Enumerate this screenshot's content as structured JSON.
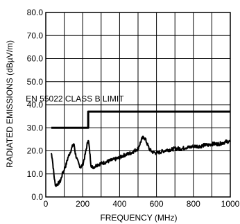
{
  "chart_data": {
    "type": "line",
    "title": "",
    "xlabel": "FREQUENCY (MHz)",
    "ylabel": "RADIATED EMISSIONS (dBµV/m)",
    "xlim": [
      0,
      1000
    ],
    "ylim": [
      0,
      80
    ],
    "grid": true,
    "x_tick_labels": [
      "0",
      "200",
      "400",
      "600",
      "800",
      "1000"
    ],
    "y_tick_labels": [
      "0.0",
      "10.0",
      "20.0",
      "30.0",
      "40.0",
      "50.0",
      "60.0",
      "70.0",
      "80.0"
    ],
    "x_ticks": [
      0,
      200,
      400,
      600,
      800,
      1000
    ],
    "y_ticks": [
      0,
      10,
      20,
      30,
      40,
      50,
      60,
      70,
      80
    ],
    "annotations": [
      {
        "text": "EN 55022 CLASS B LIMIT",
        "x": 230,
        "y": 42.5
      }
    ],
    "series": [
      {
        "style": "thick",
        "points": [
          [
            30,
            30
          ],
          [
            230,
            30
          ],
          [
            230,
            37
          ],
          [
            1000,
            37
          ]
        ]
      },
      {
        "style": "noisy",
        "points": [
          [
            30,
            19
          ],
          [
            35,
            17
          ],
          [
            40,
            13
          ],
          [
            45,
            9
          ],
          [
            50,
            6
          ],
          [
            55,
            5
          ],
          [
            60,
            5.5
          ],
          [
            70,
            6
          ],
          [
            80,
            7
          ],
          [
            90,
            10
          ],
          [
            100,
            12
          ],
          [
            110,
            14
          ],
          [
            120,
            17
          ],
          [
            130,
            19
          ],
          [
            140,
            21
          ],
          [
            150,
            23
          ],
          [
            155,
            22
          ],
          [
            160,
            19
          ],
          [
            170,
            16
          ],
          [
            180,
            14
          ],
          [
            190,
            13
          ],
          [
            200,
            14
          ],
          [
            210,
            17
          ],
          [
            220,
            21
          ],
          [
            225,
            23
          ],
          [
            230,
            25
          ],
          [
            235,
            22
          ],
          [
            240,
            18
          ],
          [
            245,
            14
          ],
          [
            250,
            13
          ],
          [
            260,
            13
          ],
          [
            280,
            14
          ],
          [
            300,
            14.5
          ],
          [
            320,
            15
          ],
          [
            340,
            15.5
          ],
          [
            360,
            16
          ],
          [
            380,
            16.5
          ],
          [
            400,
            17
          ],
          [
            420,
            18
          ],
          [
            440,
            18.5
          ],
          [
            460,
            19
          ],
          [
            480,
            20
          ],
          [
            500,
            21
          ],
          [
            510,
            23
          ],
          [
            520,
            25
          ],
          [
            530,
            26
          ],
          [
            540,
            25
          ],
          [
            550,
            23
          ],
          [
            560,
            21
          ],
          [
            570,
            20
          ],
          [
            580,
            19.5
          ],
          [
            600,
            19
          ],
          [
            620,
            19.5
          ],
          [
            640,
            20
          ],
          [
            660,
            20.5
          ],
          [
            680,
            20.5
          ],
          [
            700,
            21
          ],
          [
            720,
            21
          ],
          [
            740,
            21
          ],
          [
            760,
            21.5
          ],
          [
            780,
            21.5
          ],
          [
            800,
            22
          ],
          [
            820,
            22
          ],
          [
            840,
            22
          ],
          [
            860,
            22.5
          ],
          [
            880,
            22.5
          ],
          [
            900,
            23
          ],
          [
            920,
            23
          ],
          [
            940,
            23
          ],
          [
            960,
            23.5
          ],
          [
            980,
            24
          ],
          [
            1000,
            24
          ]
        ]
      }
    ]
  }
}
